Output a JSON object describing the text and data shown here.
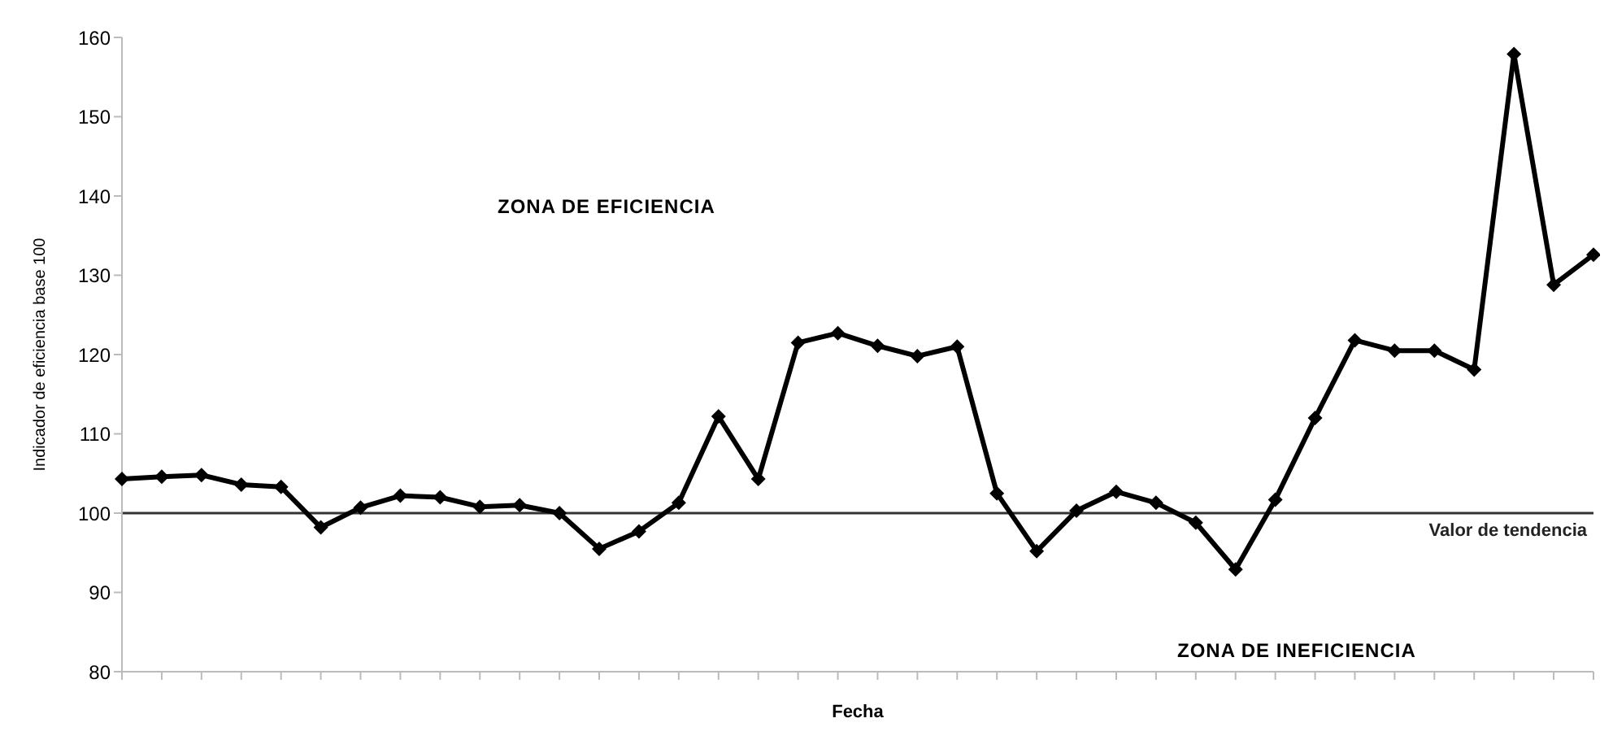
{
  "chart_data": {
    "type": "line",
    "xlabel": "Fecha",
    "ylabel": "Indicador de eficiencia base 100",
    "categories": [
      null,
      null,
      null,
      null,
      null,
      null,
      null,
      null,
      null,
      null,
      null,
      null,
      null,
      null,
      null,
      null,
      null,
      null,
      null,
      null,
      null,
      null,
      null,
      null,
      null,
      null,
      null,
      null,
      null,
      null,
      null,
      null,
      null,
      null,
      null,
      null,
      null,
      null
    ],
    "series": [
      {
        "color": "#000000",
        "values": [
          104.3,
          104.6,
          104.8,
          103.6,
          103.3,
          98.2,
          100.7,
          102.2,
          102.0,
          100.8,
          101.0,
          100.0,
          95.5,
          97.7,
          101.3,
          112.2,
          104.3,
          121.5,
          122.7,
          121.1,
          119.8,
          121.0,
          102.5,
          95.2,
          100.3,
          102.7,
          101.3,
          98.8,
          92.9,
          101.7,
          112.0,
          121.8,
          120.5,
          120.5,
          118.1,
          157.9,
          128.8,
          132.6
        ]
      }
    ],
    "ylim": [
      80,
      160
    ],
    "yticks": [
      80,
      90,
      100,
      110,
      120,
      130,
      140,
      150,
      160
    ],
    "ref_lines": [
      {
        "axis": "y",
        "value": 100,
        "label": "Valor de tendencia",
        "color": "#333333"
      }
    ],
    "annotations": [
      "ZONA DE EFICIENCIA",
      "ZONA DE INEFICIENCIA"
    ],
    "grid": false,
    "legend": false,
    "marker": "diamond",
    "line_style": "solid"
  }
}
